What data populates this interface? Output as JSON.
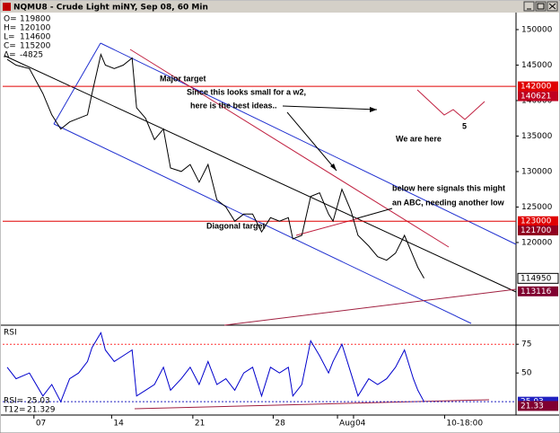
{
  "window_title": "NQMU8 - Crude Light miNY, Sep 08, 60 Min",
  "chart_data": [
    {
      "type": "line",
      "info": [
        {
          "label": "O=",
          "value": 119800
        },
        {
          "label": "H=",
          "value": 120100
        },
        {
          "label": "L=",
          "value": 114600
        },
        {
          "label": "C=",
          "value": 115200
        },
        {
          "label": "Δ=",
          "value": -4825
        }
      ],
      "annotations": [
        "Major target",
        "Since this looks small for a w2,",
        "here is the best ideas..",
        "We are here",
        "5",
        "below here signals this might",
        "an ABC, needing another low",
        "Diagonal target"
      ],
      "x": [
        5,
        15,
        30,
        45,
        55,
        65,
        75,
        85,
        95,
        100,
        110,
        115,
        125,
        135,
        145,
        150,
        160,
        170,
        180,
        188,
        200,
        210,
        220,
        230,
        240,
        250,
        260,
        270,
        280,
        290,
        300,
        310,
        320,
        325,
        335,
        345,
        355,
        365,
        370,
        380,
        390,
        398,
        410,
        420,
        430,
        440,
        450,
        460,
        465,
        472
      ],
      "series": [
        {
          "color": "#000000",
          "values": [
            145800,
            145000,
            144500,
            141000,
            138000,
            136000,
            137000,
            137500,
            138000,
            141000,
            146500,
            145000,
            144500,
            145000,
            146000,
            139000,
            137500,
            134500,
            136000,
            130500,
            130000,
            131000,
            128500,
            131000,
            126000,
            125000,
            123000,
            124000,
            124000,
            121500,
            123500,
            123000,
            123500,
            120500,
            121000,
            126500,
            127000,
            124000,
            123000,
            127500,
            124500,
            121000,
            119500,
            118000,
            117500,
            118500,
            121000,
            118000,
            116500,
            114950
          ]
        }
      ],
      "xlim": [
        0,
        575
      ],
      "xticks": [
        {
          "value": 35,
          "label": "07"
        },
        {
          "value": 122,
          "label": "14"
        },
        {
          "value": 213,
          "label": "21"
        },
        {
          "value": 303,
          "label": "28"
        },
        {
          "value": 375,
          "label": "Aug"
        },
        {
          "value": 393,
          "label": "04"
        },
        {
          "value": 495,
          "label": "10-18:00"
        }
      ],
      "ylim": [
        108600,
        152400
      ],
      "yticks": [
        150000,
        145000,
        140000,
        135000,
        130000,
        125000,
        120000
      ],
      "price_labels": [
        {
          "value": 142000,
          "color": "#e00000",
          "line": true
        },
        {
          "value": 140621,
          "color": "#c00020",
          "line": false
        },
        {
          "value": 123000,
          "color": "#e00000",
          "line": true
        },
        {
          "value": 121700,
          "color": "#900020",
          "line": false
        },
        {
          "value": 114950,
          "color": "#ffffff",
          "line": false
        },
        {
          "value": 113116,
          "color": "#800030",
          "line": false
        }
      ]
    },
    {
      "type": "line",
      "title": "RSI",
      "readouts": [
        {
          "label": "RSI=",
          "value": 25.03
        },
        {
          "label": "T12=",
          "value": 21.329
        }
      ],
      "x": [
        5,
        15,
        30,
        45,
        55,
        65,
        75,
        85,
        95,
        100,
        110,
        115,
        125,
        135,
        145,
        150,
        160,
        170,
        180,
        188,
        200,
        210,
        220,
        230,
        240,
        250,
        260,
        270,
        280,
        290,
        300,
        310,
        320,
        325,
        335,
        345,
        355,
        365,
        370,
        380,
        390,
        398,
        410,
        420,
        430,
        440,
        450,
        460,
        465,
        472
      ],
      "series": [
        {
          "color": "#0000cc",
          "values": [
            55,
            45,
            50,
            30,
            40,
            25,
            45,
            50,
            60,
            72,
            85,
            70,
            60,
            65,
            70,
            30,
            35,
            40,
            55,
            35,
            45,
            55,
            40,
            60,
            40,
            45,
            35,
            50,
            55,
            30,
            55,
            50,
            55,
            30,
            40,
            78,
            65,
            50,
            60,
            75,
            50,
            30,
            45,
            40,
            45,
            55,
            70,
            45,
            35,
            25
          ]
        }
      ],
      "xlim": [
        0,
        575
      ],
      "ylim": [
        15,
        90
      ],
      "yticks": [
        50,
        75
      ],
      "grid_lines": [
        {
          "value": 75,
          "color": "#ff3030"
        }
      ],
      "price_labels": [
        {
          "value": 25.03,
          "color": "#2020c0",
          "line": true
        },
        {
          "value": 21.33,
          "color": "#800030",
          "line": false
        }
      ]
    }
  ]
}
